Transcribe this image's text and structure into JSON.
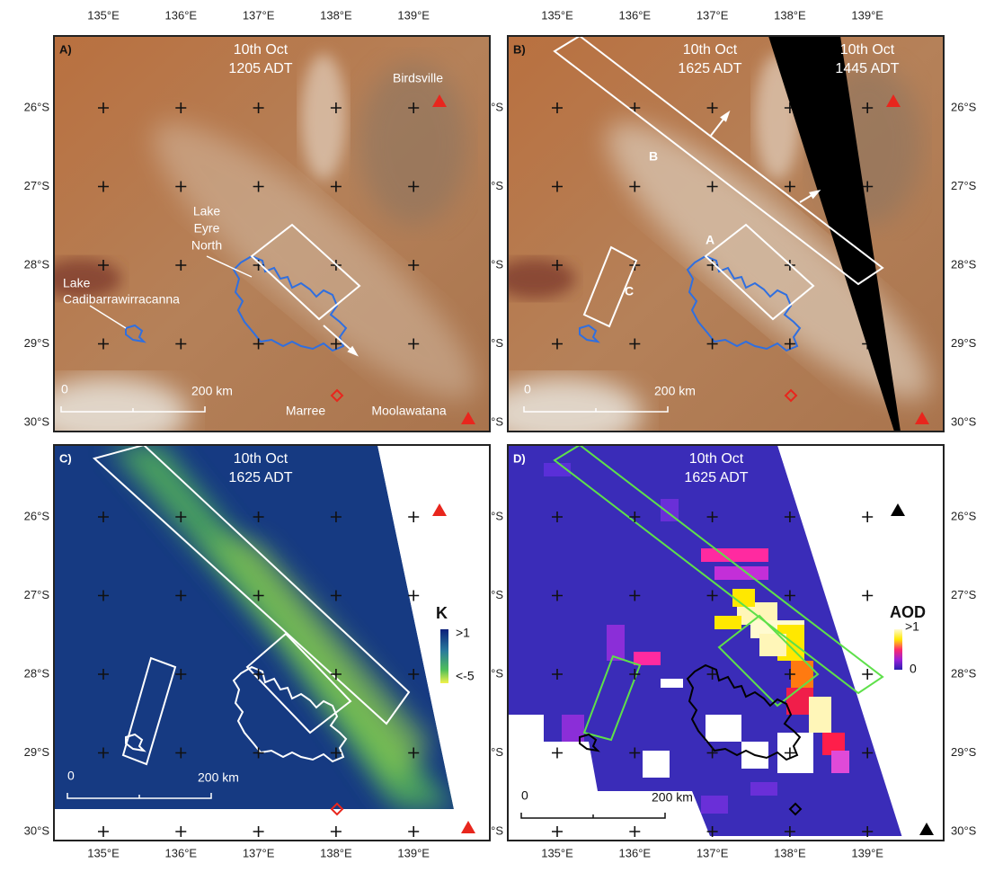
{
  "lon_labels": [
    "135°E",
    "136°E",
    "137°E",
    "138°E",
    "139°E"
  ],
  "lat_labels": [
    "26°S",
    "27°S",
    "28°S",
    "29°S",
    "30°S"
  ],
  "panels": [
    {
      "label": "A)",
      "time": [
        "10th Oct",
        "1205 ADT"
      ],
      "places": {
        "birdsville": "Birdsville",
        "lake_eyre_north": [
          "Lake",
          "Eyre",
          "North"
        ],
        "lake_cadibarrawirracanna": [
          "Lake",
          "Cadibarrawirracanna"
        ],
        "marree": "Marree",
        "moolawatana": "Moolawatana"
      },
      "scale": [
        "0",
        "200 km"
      ]
    },
    {
      "label": "B)",
      "time": [
        "10th Oct",
        "1625 ADT"
      ],
      "time2": [
        "10th Oct",
        "1445 ADT"
      ],
      "boxes": [
        "A",
        "B",
        "C"
      ],
      "scale": [
        "0",
        "200 km"
      ]
    },
    {
      "label": "C)",
      "time": [
        "10th Oct",
        "1625 ADT"
      ],
      "legend": {
        "title": "K",
        "max": ">1",
        "min": "<-5"
      },
      "scale": [
        "0",
        "200 km"
      ]
    },
    {
      "label": "D)",
      "time": [
        "10th Oct",
        "1625 ADT"
      ],
      "legend": {
        "title": "AOD",
        "max": ">1",
        "min": "0"
      },
      "scale": [
        "0",
        "200 km"
      ]
    }
  ]
}
